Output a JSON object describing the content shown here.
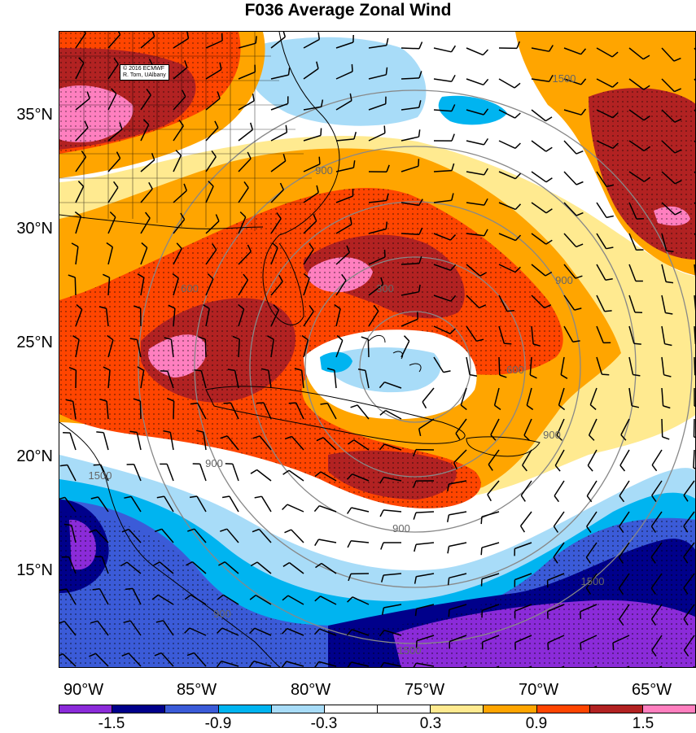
{
  "title": "F036 Average Zonal Wind",
  "credit": {
    "line1": "© 2016 ECMWF",
    "line2": "R. Torn, UAlbany"
  },
  "lat_labels": [
    "35°N",
    "30°N",
    "25°N",
    "20°N",
    "15°N"
  ],
  "lon_labels": [
    "90°W",
    "85°W",
    "80°W",
    "75°W",
    "70°W",
    "65°W"
  ],
  "colorbar": {
    "colors": [
      "#8B2BD9",
      "#00008B",
      "#3B5BD8",
      "#00B4F0",
      "#A8DCF8",
      "#FFFFFF",
      "#FFFFFF",
      "#FFEA90",
      "#FFA500",
      "#FF4500",
      "#B22222",
      "#FF7FBF"
    ],
    "labels": [
      "-1.5",
      "-0.9",
      "-0.3",
      "0.3",
      "0.9",
      "1.5"
    ]
  },
  "contour_labels": [
    "1500",
    "900",
    "600",
    "300",
    "900",
    "900",
    "900",
    "1500",
    "1500",
    "900",
    "1500",
    "900",
    "600"
  ],
  "map": {
    "lat_range": [
      10.5,
      38.5
    ],
    "lon_range": [
      -92,
      -63.5
    ],
    "center": {
      "lat": 24.2,
      "lon": -76.5
    },
    "range_rings_km": [
      300,
      600,
      900,
      1200,
      1500
    ],
    "field_colors": {
      "neg_strong": "#8B2BD9",
      "neg_dark": "#00008B",
      "neg_mid": "#3B5BD8",
      "neg_light": "#00B4F0",
      "neg_pale": "#A8DCF8",
      "pos_pale": "#FFEA90",
      "pos_light": "#FFA500",
      "pos_mid": "#FF4500",
      "pos_dark": "#B22222",
      "pos_strong": "#FF7FBF"
    }
  }
}
